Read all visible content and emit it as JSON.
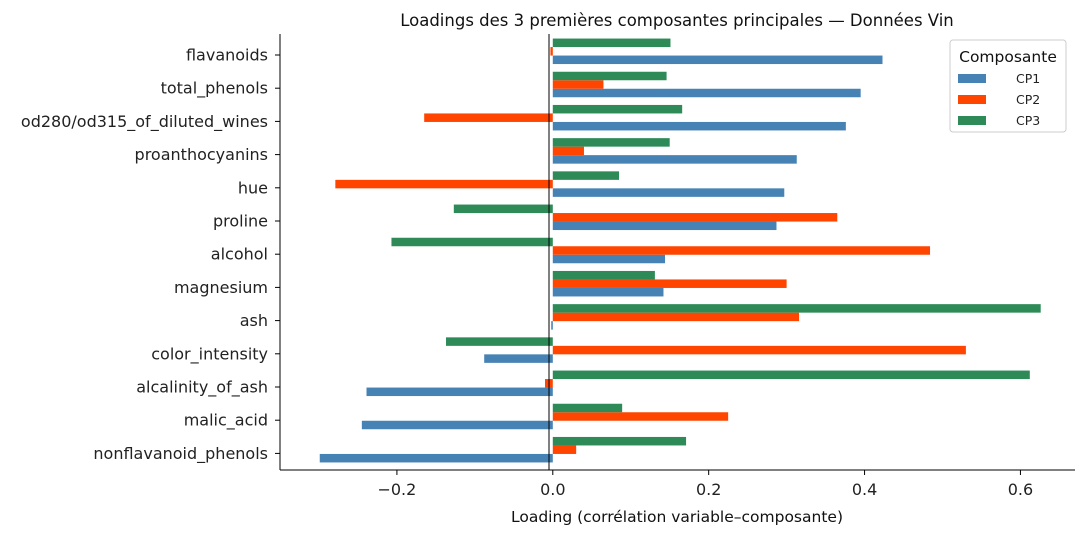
{
  "chart_data": {
    "type": "bar",
    "orientation": "horizontal",
    "title": "Loadings des 3 premières composantes principales — Données Vin",
    "xlabel": "Loading (corrélation variable–composante)",
    "ylabel": "",
    "xlim": [
      -0.35,
      0.67
    ],
    "xticks": [
      -0.2,
      0.0,
      0.2,
      0.4,
      0.6
    ],
    "xtick_labels": [
      "−0.2",
      "0.0",
      "0.2",
      "0.4",
      "0.6"
    ],
    "grid": false,
    "categories": [
      "flavanoids",
      "total_phenols",
      "od280/od315_of_diluted_wines",
      "proanthocyanins",
      "hue",
      "proline",
      "alcohol",
      "magnesium",
      "ash",
      "color_intensity",
      "alcalinity_of_ash",
      "malic_acid",
      "nonflavanoid_phenols"
    ],
    "series": [
      {
        "name": "CP1",
        "color": "#4682b4",
        "values": [
          0.423,
          0.395,
          0.376,
          0.313,
          0.297,
          0.287,
          0.144,
          0.142,
          -0.002,
          -0.088,
          -0.239,
          -0.245,
          -0.299
        ]
      },
      {
        "name": "CP2",
        "color": "#ff4500",
        "values": [
          -0.003,
          0.065,
          -0.165,
          0.04,
          -0.279,
          0.365,
          0.484,
          0.3,
          0.316,
          0.53,
          -0.01,
          0.225,
          0.03
        ]
      },
      {
        "name": "CP3",
        "color": "#2e8b57",
        "values": [
          0.151,
          0.146,
          0.166,
          0.15,
          0.085,
          -0.127,
          -0.207,
          0.131,
          0.626,
          -0.137,
          0.612,
          0.089,
          0.171
        ]
      }
    ],
    "legend": {
      "title": "Composante",
      "placement": "top-right"
    }
  }
}
